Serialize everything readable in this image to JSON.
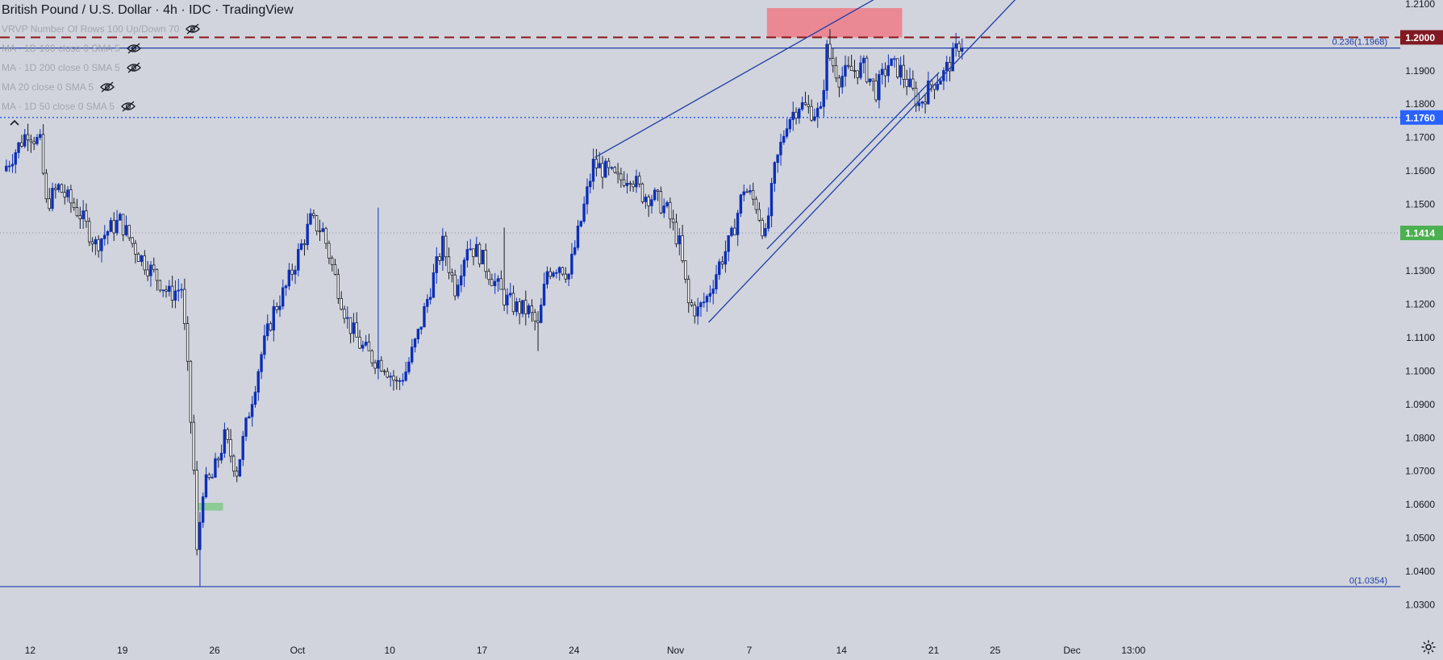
{
  "window": {
    "title": "British Pound / U.S. Dollar · 4h · IDC · TradingView"
  },
  "indicators": [
    {
      "label": "VRVP Number Of Rows 100 Up/Down 70",
      "icon": "eye-off-icon"
    },
    {
      "label": "MA · 1D 100 close 0 SMA 5",
      "icon": "eye-off-icon"
    },
    {
      "label": "MA · 1D 200 close 0 SMA 5",
      "icon": "eye-off-icon"
    },
    {
      "label": "MA 20 close 0 SMA 5",
      "icon": "eye-off-icon"
    },
    {
      "label": "MA · 1D 50 close 0 SMA 5",
      "icon": "eye-off-icon"
    }
  ],
  "colors": {
    "background": "#d1d4dc",
    "candle_up": "#0c2fb7",
    "candle_down": "#1a1c25",
    "trendline": "#1e3ca8",
    "resistance_line": "#8b1a1a",
    "support_dotted": "#2962ff",
    "resistance_zone": "#f2707c",
    "support_zone": "#7fc98a"
  },
  "chart_data": {
    "type": "candlestick",
    "symbol": "British Pound / U.S. Dollar",
    "timeframe": "4h",
    "source": "IDC",
    "ylim": [
      1.025,
      1.21
    ],
    "y_ticks": [
      "1.2100",
      "1.1900",
      "1.1800",
      "1.1700",
      "1.1600",
      "1.1500",
      "1.1300",
      "1.1200",
      "1.1100",
      "1.1000",
      "1.0900",
      "1.0800",
      "1.0700",
      "1.0600",
      "1.0500",
      "1.0400",
      "1.0300"
    ],
    "x_ticks": [
      {
        "label": "12",
        "bar": 3
      },
      {
        "label": "19",
        "bar": 33
      },
      {
        "label": "26",
        "bar": 63
      },
      {
        "label": "Oct",
        "bar": 90
      },
      {
        "label": "10",
        "bar": 120
      },
      {
        "label": "17",
        "bar": 150
      },
      {
        "label": "24",
        "bar": 180
      },
      {
        "label": "Nov",
        "bar": 213
      },
      {
        "label": "7",
        "bar": 237
      },
      {
        "label": "14",
        "bar": 267
      },
      {
        "label": "21",
        "bar": 297
      },
      {
        "label": "25",
        "bar": 317
      },
      {
        "label": "Dec",
        "bar": 342
      },
      {
        "label": "13:00",
        "bar": 362
      }
    ],
    "price_labels": [
      {
        "text": "1.2000",
        "price": 1.2,
        "style": "resistance"
      },
      {
        "text": "1.1760",
        "price": 1.176,
        "style": "support"
      },
      {
        "text": "1.1414",
        "price": 1.1414,
        "style": "last"
      }
    ],
    "fib_levels": [
      {
        "label": "0.236(1.1968)",
        "price": 1.1968
      },
      {
        "label": "0(1.0354)",
        "price": 1.0354
      }
    ],
    "horizontal_lines": [
      {
        "price": 1.2,
        "style": "dashed",
        "role": "resistance"
      },
      {
        "price": 1.176,
        "style": "dotted",
        "role": "support"
      },
      {
        "price": 1.1414,
        "style": "faint-dotted",
        "role": "last"
      }
    ],
    "zones": [
      {
        "role": "resistance-zone",
        "bar_start": 248,
        "bar_end": 292,
        "price_low": 1.2,
        "price_high": 1.2088
      },
      {
        "role": "support-zone",
        "bar_start": 63,
        "bar_end": 71,
        "price_low": 1.0582,
        "price_high": 1.0605
      }
    ],
    "trendlines": [
      {
        "from": {
          "bar": 192,
          "price": 1.164
        },
        "to": {
          "bar": 285,
          "price": 1.2125
        }
      },
      {
        "from": {
          "bar": 229,
          "price": 1.1146
        },
        "to": {
          "bar": 330,
          "price": 1.2125
        }
      },
      {
        "from": {
          "bar": 248,
          "price": 1.1366
        },
        "to": {
          "bar": 304,
          "price": 1.1895
        }
      }
    ],
    "anchors": [
      [
        0,
        1.16
      ],
      [
        8,
        1.172
      ],
      [
        12,
        1.168
      ],
      [
        14,
        1.15
      ],
      [
        18,
        1.155
      ],
      [
        25,
        1.147
      ],
      [
        30,
        1.138
      ],
      [
        34,
        1.142
      ],
      [
        38,
        1.145
      ],
      [
        44,
        1.135
      ],
      [
        50,
        1.128
      ],
      [
        54,
        1.123
      ],
      [
        58,
        1.125
      ],
      [
        60,
        1.1
      ],
      [
        62,
        1.07
      ],
      [
        63,
        1.045
      ],
      [
        65,
        1.065
      ],
      [
        68,
        1.068
      ],
      [
        72,
        1.08
      ],
      [
        76,
        1.07
      ],
      [
        80,
        1.088
      ],
      [
        84,
        1.105
      ],
      [
        88,
        1.118
      ],
      [
        92,
        1.125
      ],
      [
        96,
        1.135
      ],
      [
        100,
        1.145
      ],
      [
        104,
        1.142
      ],
      [
        108,
        1.128
      ],
      [
        112,
        1.115
      ],
      [
        116,
        1.108
      ],
      [
        120,
        1.104
      ],
      [
        124,
        1.102
      ],
      [
        128,
        1.096
      ],
      [
        131,
        1.1
      ],
      [
        135,
        1.111
      ],
      [
        139,
        1.125
      ],
      [
        143,
        1.138
      ],
      [
        147,
        1.125
      ],
      [
        151,
        1.138
      ],
      [
        155,
        1.135
      ],
      [
        159,
        1.128
      ],
      [
        163,
        1.122
      ],
      [
        167,
        1.119
      ],
      [
        171,
        1.118
      ],
      [
        174,
        1.113
      ],
      [
        177,
        1.13
      ],
      [
        181,
        1.132
      ],
      [
        184,
        1.129
      ],
      [
        188,
        1.145
      ],
      [
        192,
        1.162
      ],
      [
        196,
        1.16
      ],
      [
        200,
        1.157
      ],
      [
        204,
        1.159
      ],
      [
        208,
        1.153
      ],
      [
        212,
        1.152
      ],
      [
        216,
        1.148
      ],
      [
        220,
        1.138
      ],
      [
        223,
        1.12
      ],
      [
        226,
        1.118
      ],
      [
        229,
        1.122
      ],
      [
        233,
        1.132
      ],
      [
        237,
        1.14
      ],
      [
        241,
        1.155
      ],
      [
        245,
        1.15
      ],
      [
        248,
        1.14
      ],
      [
        251,
        1.16
      ],
      [
        255,
        1.175
      ],
      [
        259,
        1.18
      ],
      [
        263,
        1.178
      ],
      [
        266,
        1.177
      ],
      [
        268,
        1.196
      ],
      [
        272,
        1.188
      ],
      [
        276,
        1.19
      ],
      [
        280,
        1.191
      ],
      [
        284,
        1.184
      ],
      [
        288,
        1.192
      ],
      [
        292,
        1.19
      ],
      [
        295,
        1.185
      ],
      [
        298,
        1.18
      ],
      [
        302,
        1.186
      ],
      [
        306,
        1.189
      ],
      [
        309,
        1.194
      ],
      [
        311,
        1.198
      ]
    ],
    "spikes": [
      {
        "bar": 63,
        "low": 1.0354
      },
      {
        "bar": 268,
        "high": 1.2025
      },
      {
        "bar": 162,
        "high": 1.143
      },
      {
        "bar": 173,
        "low": 1.106
      },
      {
        "bar": 121,
        "high": 1.149
      },
      {
        "bar": 12,
        "high": 1.174
      }
    ],
    "n_bars": 312,
    "x_last": 1189
  }
}
